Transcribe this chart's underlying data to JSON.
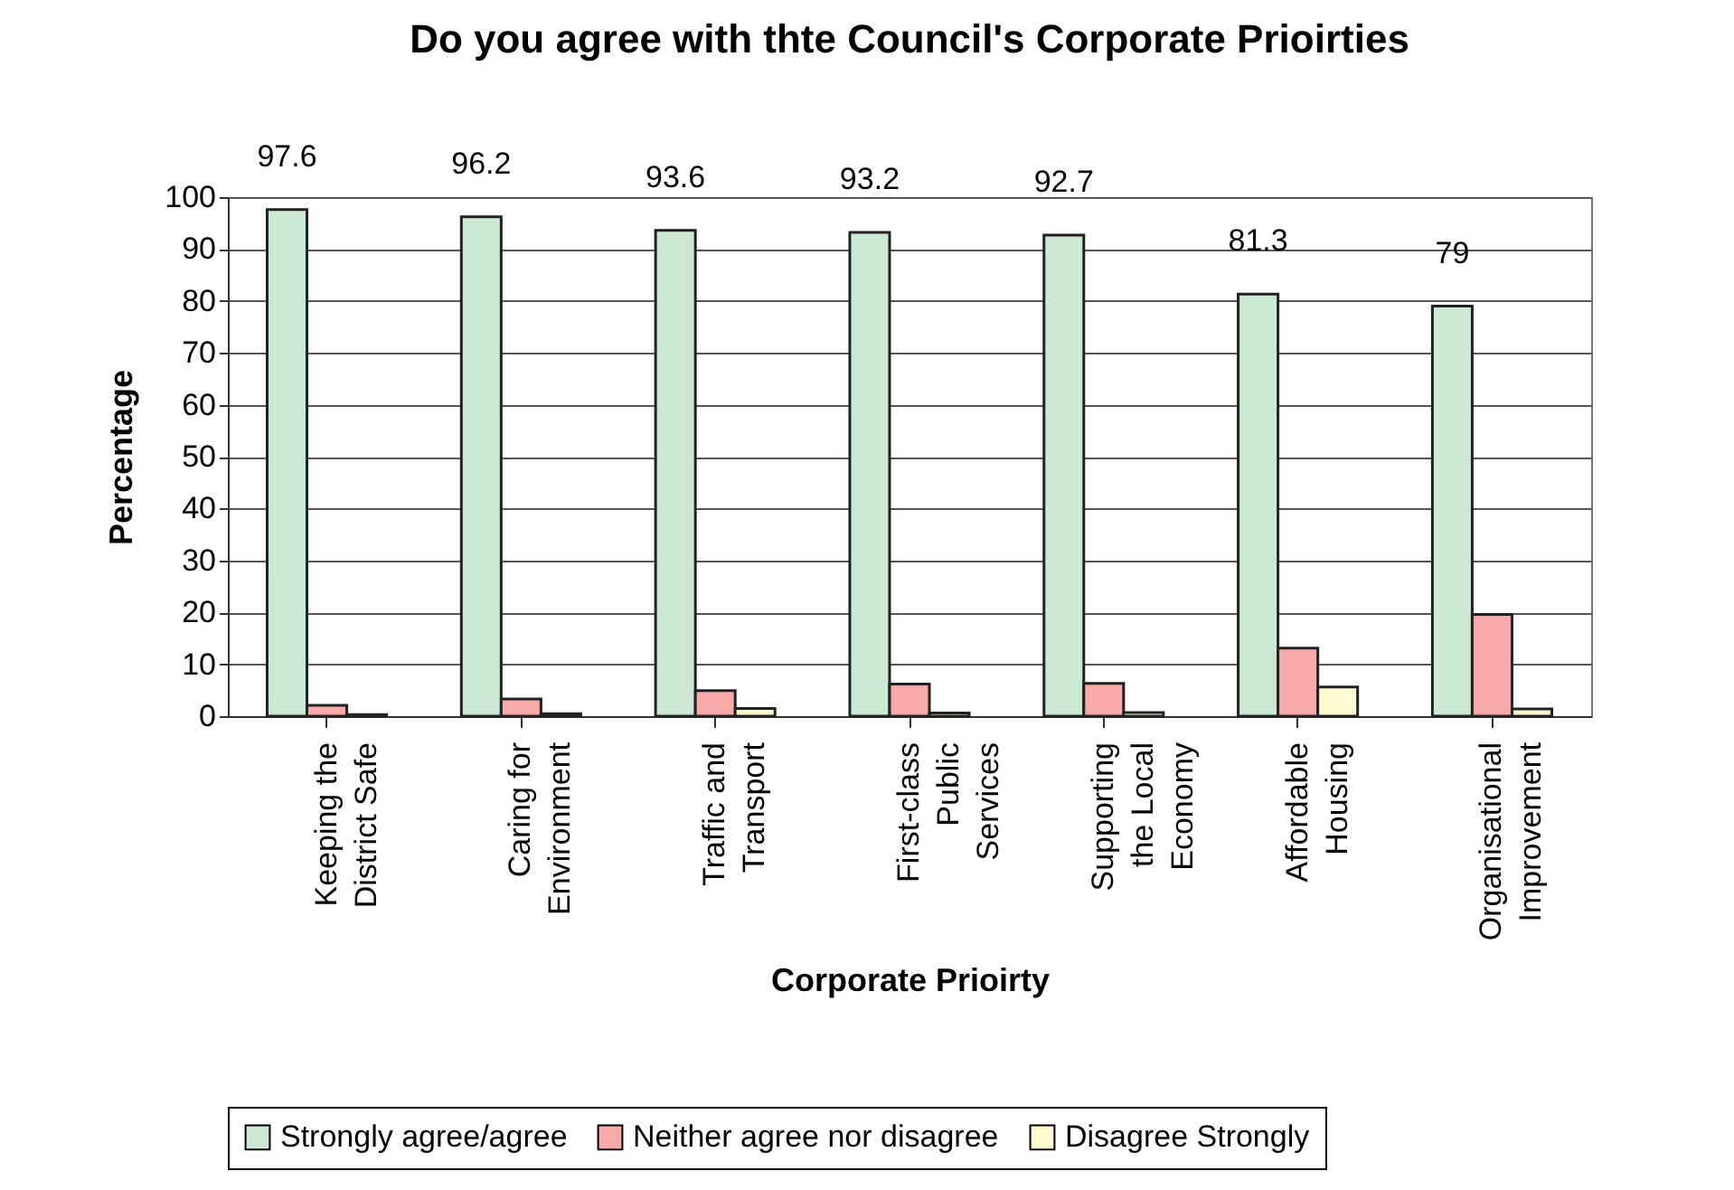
{
  "chart_data": {
    "type": "bar",
    "title": "Do you agree with thte Council's Corporate Prioirties",
    "xlabel": "Corporate Prioirty",
    "ylabel": "Percentage",
    "categories": [
      "Keeping the District Safe",
      "Caring for Environment",
      "Traffic and Transport",
      "First-class Public Services",
      "Supporting the Local Economy",
      "Affordable Housing",
      "Organisational Improvement"
    ],
    "series": [
      {
        "name": "Strongly agree/agree",
        "color": "#cce8d4",
        "values": [
          97.6,
          96.2,
          93.6,
          93.2,
          92.7,
          81.3,
          79
        ],
        "value_labels": [
          "97.6",
          "96.2",
          "93.6",
          "93.2",
          "92.7",
          "81.3",
          "79"
        ]
      },
      {
        "name": "Neither agree nor disagree",
        "color": "#f8aaaa",
        "values": [
          2.1,
          3.3,
          4.9,
          6.2,
          6.3,
          13.1,
          19.6
        ]
      },
      {
        "name": "Disagree Strongly",
        "color": "#fffbd0",
        "values": [
          0.3,
          0.5,
          1.5,
          0.6,
          0.7,
          5.6,
          1.4
        ]
      }
    ],
    "ylim": [
      0,
      100
    ],
    "yticks": [
      0,
      10,
      20,
      30,
      40,
      50,
      60,
      70,
      80,
      90,
      100
    ],
    "grid": "y",
    "legend": "bottom"
  }
}
